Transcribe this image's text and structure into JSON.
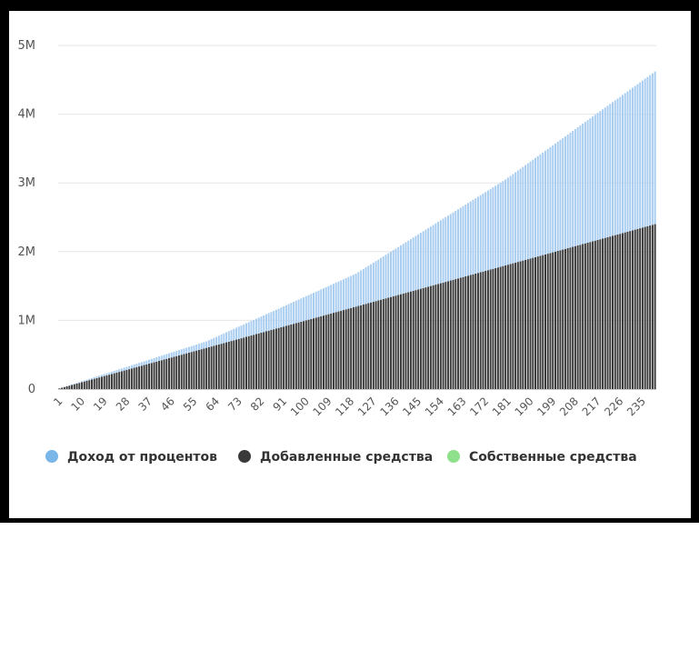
{
  "chart_data": {
    "type": "bar",
    "stacked": true,
    "x_start": 1,
    "x_end": 240,
    "x_tick_labels": [
      "1",
      "10",
      "19",
      "28",
      "37",
      "46",
      "55",
      "64",
      "73",
      "82",
      "91",
      "100",
      "109",
      "118",
      "127",
      "136",
      "145",
      "154",
      "163",
      "172",
      "181",
      "190",
      "199",
      "208",
      "217",
      "226",
      "235"
    ],
    "y_tick_labels": [
      "0",
      "1M",
      "2M",
      "3M",
      "4M",
      "5M"
    ],
    "ylim": [
      0,
      5000000
    ],
    "grid": true,
    "legend_position": "bottom",
    "series": [
      {
        "name": "Добавленные средства",
        "color": "#3a3a3a",
        "model": "linear",
        "values_at": {
          "1": 10000,
          "240": 2400000
        }
      },
      {
        "name": "Доход от процентов",
        "color": "#a9cdf0",
        "model": "growth",
        "values_at": {
          "1": 0,
          "60": 95000,
          "120": 480000,
          "180": 1250000,
          "240": 2220000
        }
      },
      {
        "name": "Собственные средства",
        "color": "#8ee08a",
        "values_at": {
          "1": 0,
          "240": 0
        }
      }
    ],
    "legend": [
      {
        "label": "Доход от процентов",
        "color": "#7ab6e8"
      },
      {
        "label": "Добавленные средства",
        "color": "#3a3a3a"
      },
      {
        "label": "Собственные средства",
        "color": "#8ee08a"
      }
    ]
  }
}
